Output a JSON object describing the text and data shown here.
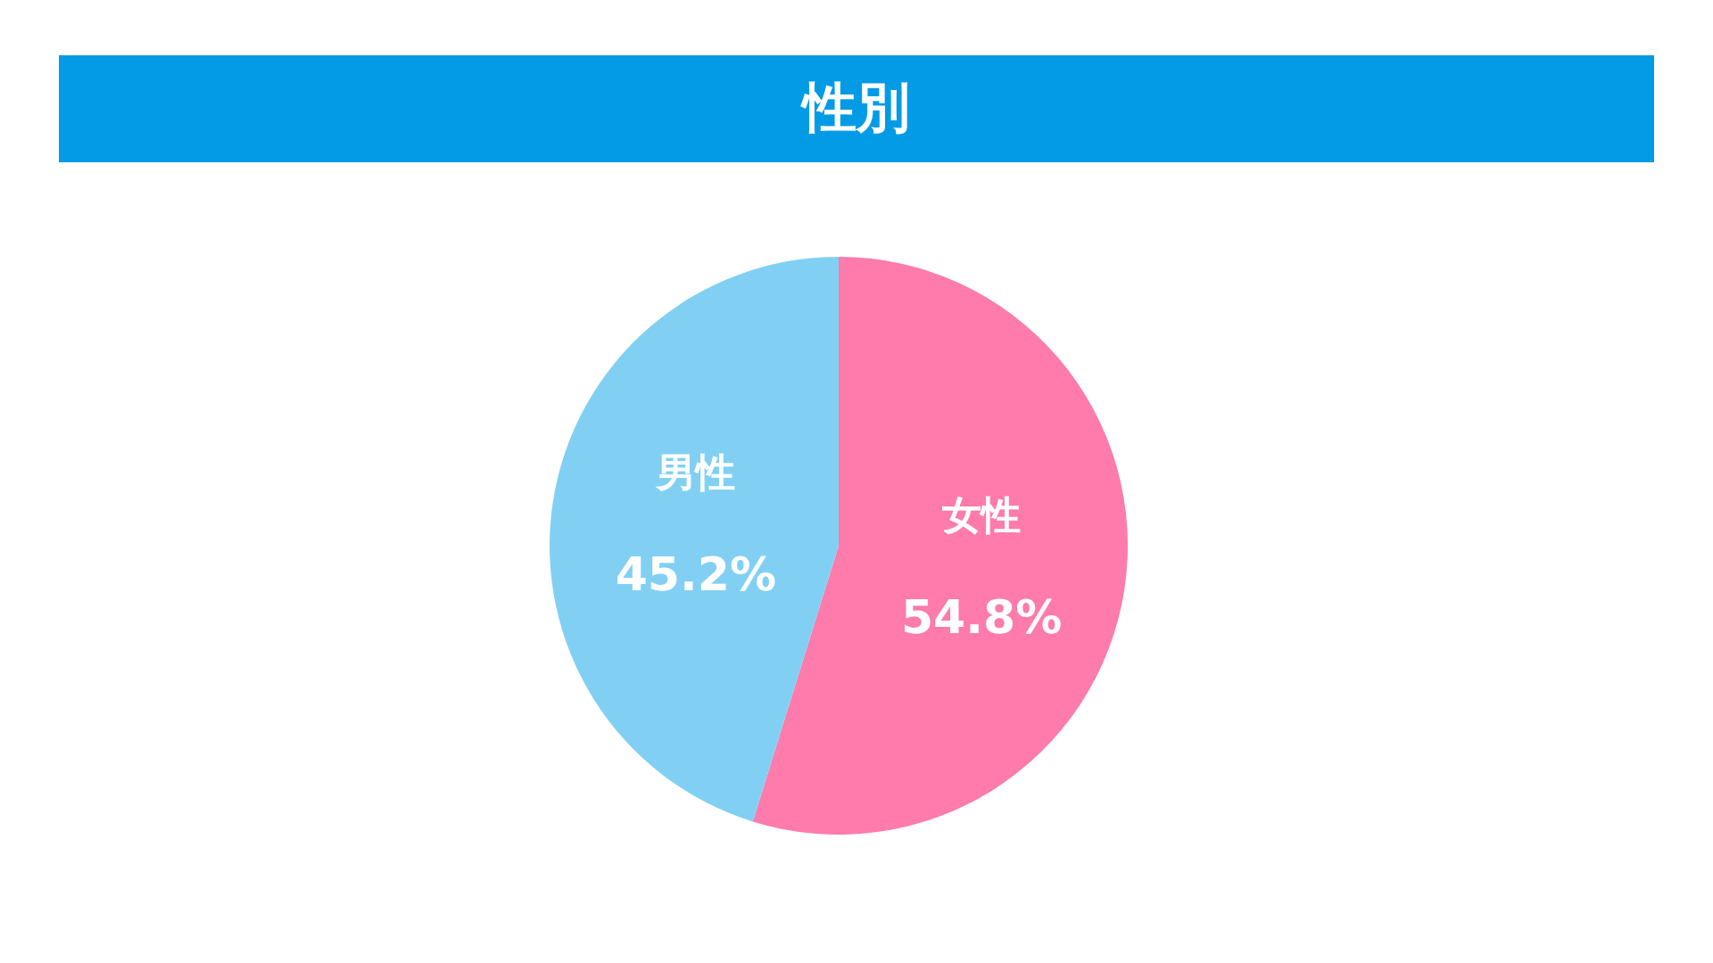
{
  "chart_data": {
    "type": "pie",
    "title": "性別",
    "categories": [
      "女性",
      "男性"
    ],
    "values": [
      54.8,
      45.2
    ],
    "colors": [
      "#fe7bac",
      "#81d0f4"
    ],
    "value_labels": [
      "54.8%",
      "45.2%"
    ]
  }
}
